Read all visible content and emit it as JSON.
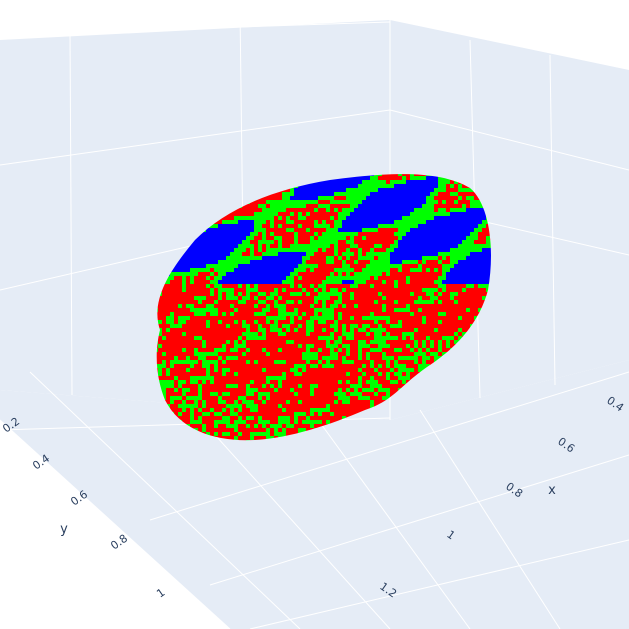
{
  "chart_data": {
    "type": "scatter3d",
    "title": "",
    "description_kind": "voxel point cloud of a brain volume",
    "colors": {
      "background_plane": "#e5ecf6",
      "grid": "#ffffff",
      "tick_text": "#2a3f5f",
      "series": [
        "#ff0000",
        "#00ff00",
        "#0000ff"
      ]
    },
    "series": [
      {
        "color": "#ff0000"
      },
      {
        "color": "#00ff00"
      },
      {
        "color": "#0000ff"
      }
    ],
    "axes": {
      "x": {
        "title": "x",
        "ticks": [
          {
            "value": 0.4,
            "label": "0.4"
          },
          {
            "value": 0.6,
            "label": "0.6"
          },
          {
            "value": 0.8,
            "label": "0.8"
          },
          {
            "value": 1.0,
            "label": "1"
          },
          {
            "value": 1.2,
            "label": "1.2"
          }
        ]
      },
      "y": {
        "title": "y",
        "ticks": [
          {
            "value": 0.2,
            "label": "0.2"
          },
          {
            "value": 0.4,
            "label": "0.4"
          },
          {
            "value": 0.6,
            "label": "0.6"
          },
          {
            "value": 0.8,
            "label": "0.8"
          },
          {
            "value": 1.0,
            "label": "1"
          }
        ]
      },
      "z": {
        "title": "",
        "ticks": []
      }
    },
    "grid": true,
    "legend": "none"
  }
}
